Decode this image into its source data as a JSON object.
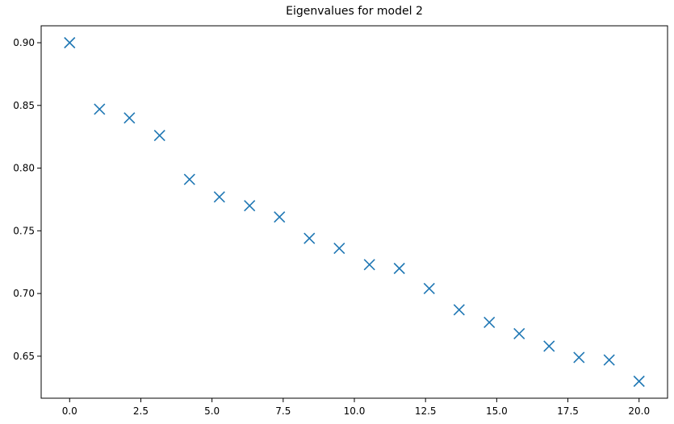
{
  "chart_data": {
    "type": "scatter",
    "title": "Eigenvalues for model 2",
    "xlabel": "",
    "ylabel": "",
    "marker": "x",
    "color": "#1f77b4",
    "xlim": [
      -1.0,
      21.0
    ],
    "ylim": [
      0.6165,
      0.9135
    ],
    "x_ticks": [
      0.0,
      2.5,
      5.0,
      7.5,
      10.0,
      12.5,
      15.0,
      17.5,
      20.0
    ],
    "x_tick_labels": [
      "0.0",
      "2.5",
      "5.0",
      "7.5",
      "10.0",
      "12.5",
      "15.0",
      "17.5",
      "20.0"
    ],
    "y_ticks": [
      0.65,
      0.7,
      0.75,
      0.8,
      0.85,
      0.9
    ],
    "y_tick_labels": [
      "0.65",
      "0.70",
      "0.75",
      "0.80",
      "0.85",
      "0.90"
    ],
    "grid": false,
    "series": [
      {
        "x": [
          0.0,
          1.05,
          2.1,
          3.16,
          4.21,
          5.26,
          6.32,
          7.37,
          8.42,
          9.47,
          10.53,
          11.58,
          12.63,
          13.68,
          14.74,
          15.79,
          16.84,
          17.89,
          18.95,
          20.0
        ],
        "y": [
          0.9,
          0.847,
          0.84,
          0.826,
          0.791,
          0.777,
          0.77,
          0.761,
          0.744,
          0.736,
          0.723,
          0.72,
          0.704,
          0.687,
          0.677,
          0.668,
          0.658,
          0.649,
          0.647,
          0.63
        ]
      }
    ]
  }
}
